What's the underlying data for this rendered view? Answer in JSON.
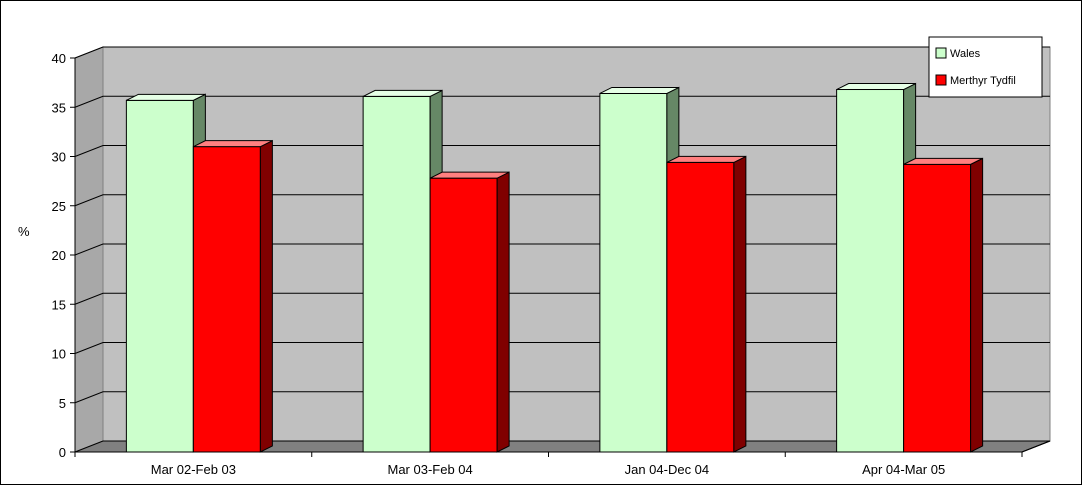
{
  "chart_data": {
    "type": "bar",
    "title": "",
    "xlabel": "",
    "ylabel": "%",
    "ylim": [
      0,
      40
    ],
    "yticks": [
      0,
      5,
      10,
      15,
      20,
      25,
      30,
      35,
      40
    ],
    "categories": [
      "Mar 02-Feb 03",
      "Mar 03-Feb 04",
      "Jan 04-Dec 04",
      "Apr 04-Mar 05"
    ],
    "series": [
      {
        "name": "Wales",
        "values": [
          35.7,
          36.1,
          36.4,
          36.8
        ],
        "color": "#ccffcc",
        "side_color": "#668866",
        "top_color": "#e6ffe6"
      },
      {
        "name": "Merthyr Tydfil",
        "values": [
          31.0,
          27.8,
          29.4,
          29.2
        ],
        "color": "#ff0000",
        "side_color": "#800000",
        "top_color": "#ff8080"
      }
    ],
    "grid": true,
    "legend_position": "top-right",
    "plot_background": "#c0c0c0",
    "floor_color": "#808080",
    "style": "3d-clustered-column"
  }
}
